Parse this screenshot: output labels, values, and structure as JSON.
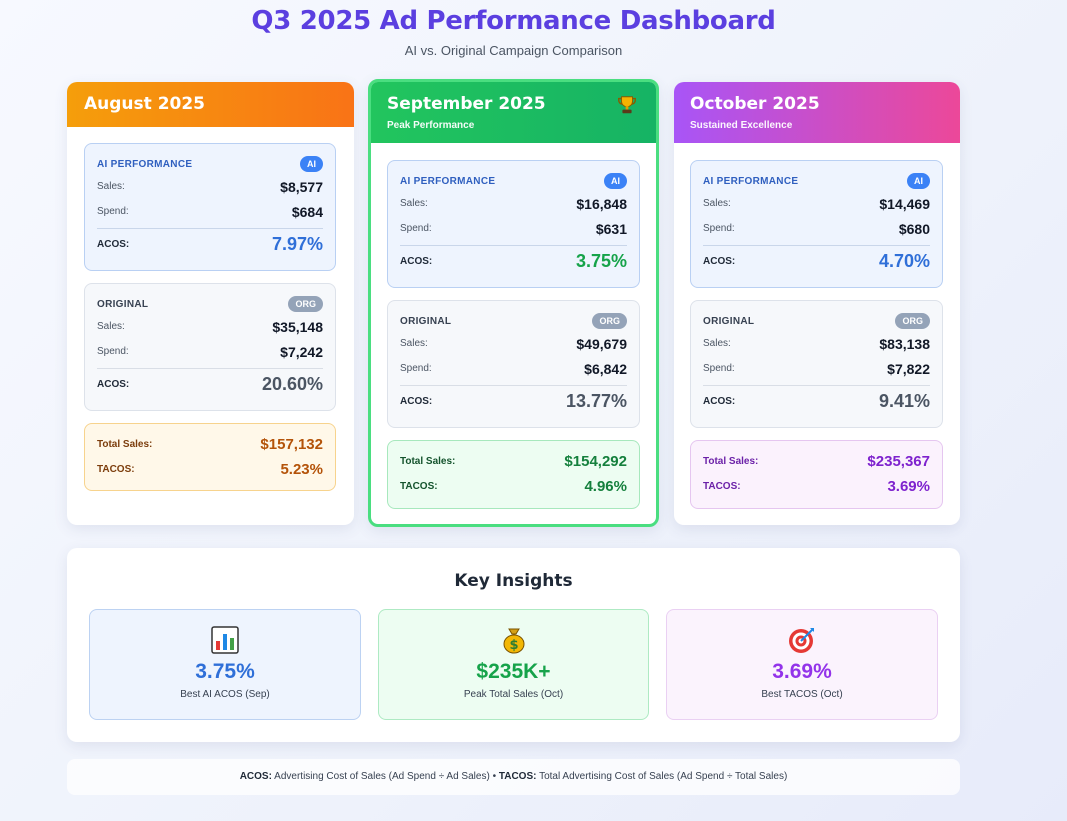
{
  "header": {
    "title": "Q3 2025 Ad Performance Dashboard",
    "subtitle": "AI vs. Original Campaign Comparison"
  },
  "labels": {
    "ai_section": "AI PERFORMANCE",
    "ai_badge": "AI",
    "org_section": "ORIGINAL",
    "org_badge": "ORG",
    "sales": "Sales:",
    "spend": "Spend:",
    "acos": "ACOS:",
    "total_sales": "Total Sales:",
    "tacos": "TACOS:"
  },
  "months": [
    {
      "name": "August 2025",
      "ai": {
        "sales": "$8,577",
        "spend": "$684",
        "acos": "7.97%"
      },
      "original": {
        "sales": "$35,148",
        "spend": "$7,242",
        "acos": "20.60%"
      },
      "total_sales": "$157,132",
      "tacos": "5.23%"
    },
    {
      "name": "September 2025",
      "tag": "Peak Performance",
      "icon": "trophy-icon",
      "ai": {
        "sales": "$16,848",
        "spend": "$631",
        "acos": "3.75%"
      },
      "original": {
        "sales": "$49,679",
        "spend": "$6,842",
        "acos": "13.77%"
      },
      "total_sales": "$154,292",
      "tacos": "4.96%"
    },
    {
      "name": "October 2025",
      "tag": "Sustained Excellence",
      "ai": {
        "sales": "$14,469",
        "spend": "$680",
        "acos": "4.70%"
      },
      "original": {
        "sales": "$83,138",
        "spend": "$7,822",
        "acos": "9.41%"
      },
      "total_sales": "$235,367",
      "tacos": "3.69%"
    }
  ],
  "insights": {
    "title": "Key Insights",
    "items": [
      {
        "icon": "bar-chart-icon",
        "value": "3.75%",
        "label": "Best AI ACOS (Sep)"
      },
      {
        "icon": "money-bag-icon",
        "value": "$235K+",
        "label": "Peak Total Sales (Oct)"
      },
      {
        "icon": "target-icon",
        "value": "3.69%",
        "label": "Best TACOS (Oct)"
      }
    ]
  },
  "footer": {
    "acos_term": "ACOS:",
    "acos_def": "Advertising Cost of Sales (Ad Spend ÷ Ad Sales)",
    "separator": "•",
    "tacos_term": "TACOS:",
    "tacos_def": "Total Advertising Cost of Sales (Ad Spend ÷ Total Sales)"
  },
  "colors": {
    "accent": "#5b3fe0",
    "august": "#f97316",
    "september": "#22c55e",
    "october": "#a855f7"
  }
}
